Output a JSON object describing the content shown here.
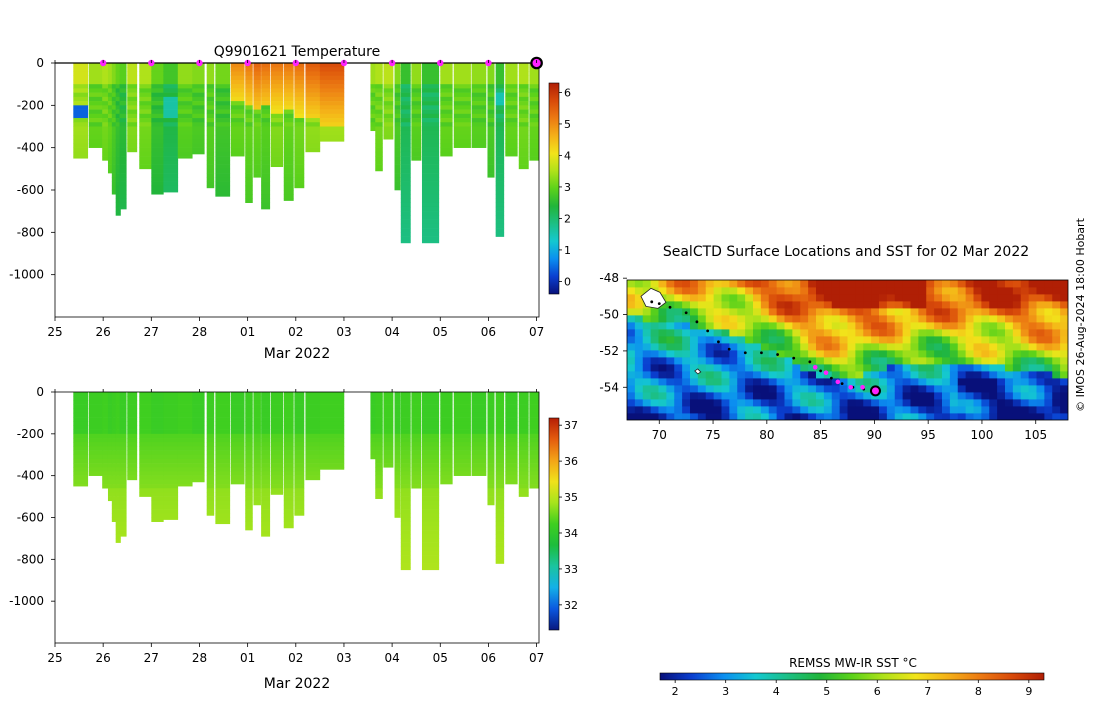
{
  "colors": {
    "temp_scale": [
      "#08107a",
      "#0a3fd0",
      "#0b8ff0",
      "#14c8d0",
      "#1cbf84",
      "#21b53a",
      "#5cd21a",
      "#b0e21a",
      "#f2e41a",
      "#f4b018",
      "#ec7a12",
      "#d84a0a",
      "#b01f05"
    ],
    "sal_scale": [
      "#0a1880",
      "#0b58e0",
      "#13b0e8",
      "#1bc4a0",
      "#1dbd3c",
      "#3fcf20",
      "#a6e41c",
      "#f0e21a",
      "#f3a417",
      "#e45c0e",
      "#b51e05"
    ],
    "marker": "#ff22ff",
    "track": "#000000",
    "land": "#ffffff"
  },
  "chart_data": [
    {
      "id": "temperature",
      "type": "heatmap",
      "title": "Q9901621  Temperature",
      "xlabel": "Mar 2022",
      "ylabel": "",
      "x_ticks": [
        "25",
        "26",
        "27",
        "28",
        "01",
        "02",
        "03",
        "04",
        "05",
        "06",
        "07"
      ],
      "x_range_days": [
        0,
        10.05
      ],
      "y_ticks": [
        0,
        -200,
        -400,
        -600,
        -800,
        -1000
      ],
      "ylim": [
        -1200,
        0
      ],
      "colorbar": {
        "ticks": [
          0,
          1,
          2,
          3,
          4,
          5,
          6
        ],
        "range": [
          -0.4,
          6.3
        ]
      },
      "markers_day": [
        1,
        2,
        3,
        4,
        5,
        6,
        7,
        8,
        9
      ],
      "end_marker_day": 10,
      "profiles": [
        {
          "t": 0.38,
          "w": 0.3,
          "d": 450,
          "v": 3.4,
          "cold": [
            -200,
            -260,
            0.4
          ]
        },
        {
          "t": 0.7,
          "w": 0.3,
          "d": 400,
          "v": 3.0
        },
        {
          "t": 0.98,
          "w": 0.12,
          "d": 460,
          "v": 3.1
        },
        {
          "t": 1.1,
          "w": 0.1,
          "d": 520,
          "v": 3.0
        },
        {
          "t": 1.18,
          "w": 0.1,
          "d": 620,
          "v": 2.8
        },
        {
          "t": 1.26,
          "w": 0.1,
          "d": 720,
          "v": 2.6
        },
        {
          "t": 1.34,
          "w": 0.14,
          "d": 690,
          "v": 2.5
        },
        {
          "t": 1.5,
          "w": 0.2,
          "d": 420,
          "v": 3.2
        },
        {
          "t": 1.75,
          "w": 0.25,
          "d": 500,
          "v": 3.1
        },
        {
          "t": 2.0,
          "w": 0.25,
          "d": 620,
          "v": 2.6
        },
        {
          "t": 2.25,
          "w": 0.3,
          "d": 610,
          "v": 2.3,
          "cold": [
            -160,
            -260,
            1.6
          ]
        },
        {
          "t": 2.55,
          "w": 0.3,
          "d": 450,
          "v": 2.9
        },
        {
          "t": 2.85,
          "w": 0.25,
          "d": 430,
          "v": 2.8
        },
        {
          "t": 3.15,
          "w": 0.15,
          "d": 590,
          "v": 2.9
        },
        {
          "t": 3.33,
          "w": 0.3,
          "d": 630,
          "v": 2.7
        },
        {
          "t": 3.65,
          "w": 0.28,
          "d": 440,
          "v": 3.0,
          "warm": [
            0,
            -180,
            5.0
          ]
        },
        {
          "t": 3.95,
          "w": 0.15,
          "d": 660,
          "v": 3.0,
          "warm": [
            0,
            -200,
            5.2
          ]
        },
        {
          "t": 4.12,
          "w": 0.15,
          "d": 540,
          "v": 3.0,
          "warm": [
            0,
            -220,
            5.4
          ]
        },
        {
          "t": 4.28,
          "w": 0.18,
          "d": 690,
          "v": 2.9,
          "warm": [
            0,
            -200,
            5.3
          ]
        },
        {
          "t": 4.48,
          "w": 0.25,
          "d": 490,
          "v": 3.2,
          "warm": [
            0,
            -240,
            5.2
          ]
        },
        {
          "t": 4.75,
          "w": 0.2,
          "d": 650,
          "v": 3.0,
          "warm": [
            0,
            -220,
            5.2
          ]
        },
        {
          "t": 4.97,
          "w": 0.2,
          "d": 590,
          "v": 3.1,
          "warm": [
            0,
            -260,
            5.3
          ]
        },
        {
          "t": 5.2,
          "w": 0.3,
          "d": 420,
          "v": 3.3,
          "warm": [
            0,
            -260,
            5.5
          ]
        },
        {
          "t": 5.5,
          "w": 0.5,
          "d": 370,
          "v": 3.4,
          "warm": [
            0,
            -300,
            5.7
          ]
        },
        {
          "t": 6.55,
          "w": 0.1,
          "d": 320,
          "v": 3.0
        },
        {
          "t": 6.65,
          "w": 0.15,
          "d": 510,
          "v": 3.1
        },
        {
          "t": 6.82,
          "w": 0.2,
          "d": 360,
          "v": 3.2
        },
        {
          "t": 7.05,
          "w": 0.12,
          "d": 600,
          "v": 2.8
        },
        {
          "t": 7.18,
          "w": 0.2,
          "d": 850,
          "v": 2.2
        },
        {
          "t": 7.4,
          "w": 0.2,
          "d": 460,
          "v": 2.9
        },
        {
          "t": 7.62,
          "w": 0.35,
          "d": 850,
          "v": 2.2
        },
        {
          "t": 8.0,
          "w": 0.25,
          "d": 440,
          "v": 3.0
        },
        {
          "t": 8.28,
          "w": 0.35,
          "d": 400,
          "v": 3.0
        },
        {
          "t": 8.65,
          "w": 0.3,
          "d": 400,
          "v": 2.9
        },
        {
          "t": 8.98,
          "w": 0.14,
          "d": 540,
          "v": 2.8
        },
        {
          "t": 9.15,
          "w": 0.17,
          "d": 820,
          "v": 2.2,
          "cold": [
            -130,
            -200,
            1.5
          ]
        },
        {
          "t": 9.35,
          "w": 0.25,
          "d": 440,
          "v": 3.0
        },
        {
          "t": 9.63,
          "w": 0.2,
          "d": 500,
          "v": 3.1
        },
        {
          "t": 9.85,
          "w": 0.2,
          "d": 460,
          "v": 3.0
        }
      ]
    },
    {
      "id": "salinity",
      "type": "heatmap",
      "title": "",
      "xlabel": "Mar 2022",
      "ylabel": "",
      "x_ticks": [
        "25",
        "26",
        "27",
        "28",
        "01",
        "02",
        "03",
        "04",
        "05",
        "06",
        "07"
      ],
      "x_range_days": [
        0,
        10.05
      ],
      "y_ticks": [
        0,
        -200,
        -400,
        -600,
        -800,
        -1000
      ],
      "ylim": [
        -1200,
        0
      ],
      "colorbar": {
        "ticks": [
          32,
          33,
          34,
          35,
          36,
          37
        ],
        "range": [
          31.3,
          37.2
        ]
      },
      "surface_value": 34.15,
      "deep_value": 34.72
    },
    {
      "id": "sst_map",
      "type": "heatmap",
      "title": "SealCTD Surface Locations and SST for 02 Mar 2022",
      "xlabel": "",
      "ylabel": "",
      "x_ticks": [
        "70",
        "75",
        "80",
        "85",
        "90",
        "95",
        "100",
        "105"
      ],
      "xlim": [
        67,
        108
      ],
      "y_ticks": [
        "-48",
        "-50",
        "-52",
        "-54"
      ],
      "ylim": [
        -55.8,
        -48.1
      ],
      "colorbar_label": "REMSS MW-IR SST °C",
      "colorbar": {
        "ticks": [
          2,
          3,
          4,
          5,
          6,
          7,
          8,
          9
        ],
        "range": [
          1.7,
          9.3
        ]
      },
      "track": [
        [
          69.3,
          -49.3
        ],
        [
          70,
          -49.4
        ],
        [
          71,
          -49.6
        ],
        [
          72.5,
          -49.9
        ],
        [
          73.5,
          -50.4
        ],
        [
          74.5,
          -50.9
        ],
        [
          75.5,
          -51.5
        ],
        [
          76.5,
          -51.9
        ],
        [
          78,
          -52.1
        ],
        [
          79.5,
          -52.1
        ],
        [
          81,
          -52.2
        ],
        [
          82.5,
          -52.4
        ],
        [
          84,
          -52.6
        ],
        [
          85,
          -53.1
        ],
        [
          86,
          -53.5
        ],
        [
          87,
          -53.8
        ],
        [
          88,
          -54.0
        ],
        [
          89,
          -54.1
        ],
        [
          89.8,
          -54.1
        ]
      ],
      "track_markers": [
        [
          84.5,
          -52.9
        ],
        [
          85.5,
          -53.2
        ],
        [
          86.6,
          -53.7
        ],
        [
          87.8,
          -54.0
        ],
        [
          88.9,
          -54.0
        ]
      ],
      "end_point": [
        90.1,
        -54.2
      ],
      "land_kerguelen": [
        69.5,
        -49.3
      ],
      "land_heard": [
        73.3,
        -53.1
      ]
    }
  ],
  "watermark": "© IMOS 26-Aug-2024 18:00 Hobart"
}
